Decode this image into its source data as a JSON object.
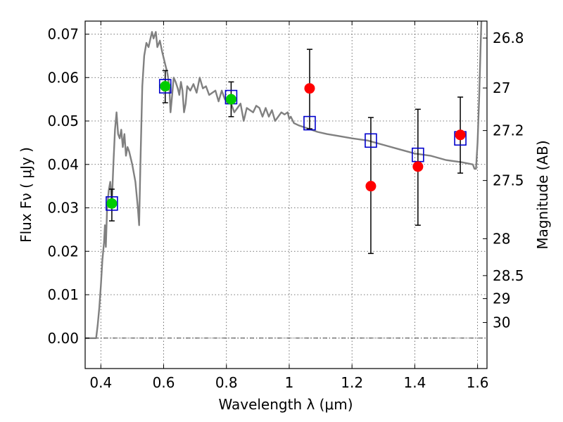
{
  "chart_data": {
    "type": "scatter",
    "title": "",
    "xlabel": "Wavelength  λ (μm)",
    "ylabel": "Flux  Fν  ( μJy )",
    "y2label": "Magnitude (AB)",
    "xlim": [
      0.35,
      1.63
    ],
    "ylim": [
      -0.007,
      0.073
    ],
    "grid": true,
    "x_ticks": [
      0.4,
      0.6,
      0.8,
      1.0,
      1.2,
      1.4,
      1.6
    ],
    "x_tick_labels": [
      "0.4",
      "0.6",
      "0.8",
      "1",
      "1.2",
      "1.4",
      "1.6"
    ],
    "y_ticks": [
      0.0,
      0.01,
      0.02,
      0.03,
      0.04,
      0.05,
      0.06,
      0.07
    ],
    "y_tick_labels": [
      "0.00",
      "0.01",
      "0.02",
      "0.03",
      "0.04",
      "0.05",
      "0.06",
      "0.07"
    ],
    "y2_ticks": [
      {
        "flux": 0.0691,
        "label": "26.8"
      },
      {
        "flux": 0.0576,
        "label": "27"
      },
      {
        "flux": 0.0478,
        "label": "27.2"
      },
      {
        "flux": 0.0363,
        "label": "27.5"
      },
      {
        "flux": 0.0229,
        "label": "28"
      },
      {
        "flux": 0.0144,
        "label": "28.5"
      },
      {
        "flux": 0.0091,
        "label": "29"
      },
      {
        "flux": 0.0036,
        "label": "30"
      }
    ],
    "series": [
      {
        "type": "line",
        "color": "#808080",
        "points": [
          [
            0.35,
            0.0
          ],
          [
            0.385,
            0.0
          ],
          [
            0.39,
            0.003
          ],
          [
            0.395,
            0.007
          ],
          [
            0.4,
            0.012
          ],
          [
            0.405,
            0.018
          ],
          [
            0.41,
            0.022
          ],
          [
            0.413,
            0.026
          ],
          [
            0.416,
            0.021
          ],
          [
            0.42,
            0.03
          ],
          [
            0.425,
            0.034
          ],
          [
            0.43,
            0.036
          ],
          [
            0.435,
            0.031
          ],
          [
            0.44,
            0.04
          ],
          [
            0.445,
            0.048
          ],
          [
            0.45,
            0.052
          ],
          [
            0.455,
            0.047
          ],
          [
            0.46,
            0.046
          ],
          [
            0.465,
            0.048
          ],
          [
            0.47,
            0.044
          ],
          [
            0.475,
            0.047
          ],
          [
            0.48,
            0.042
          ],
          [
            0.485,
            0.044
          ],
          [
            0.49,
            0.043
          ],
          [
            0.5,
            0.04
          ],
          [
            0.51,
            0.036
          ],
          [
            0.518,
            0.03
          ],
          [
            0.522,
            0.026
          ],
          [
            0.526,
            0.04
          ],
          [
            0.532,
            0.058
          ],
          [
            0.538,
            0.065
          ],
          [
            0.545,
            0.068
          ],
          [
            0.552,
            0.067
          ],
          [
            0.558,
            0.069
          ],
          [
            0.563,
            0.0705
          ],
          [
            0.568,
            0.069
          ],
          [
            0.575,
            0.0705
          ],
          [
            0.58,
            0.067
          ],
          [
            0.588,
            0.0685
          ],
          [
            0.595,
            0.066
          ],
          [
            0.605,
            0.063
          ],
          [
            0.612,
            0.061
          ],
          [
            0.618,
            0.058
          ],
          [
            0.622,
            0.052
          ],
          [
            0.626,
            0.055
          ],
          [
            0.632,
            0.06
          ],
          [
            0.638,
            0.059
          ],
          [
            0.645,
            0.0575
          ],
          [
            0.65,
            0.056
          ],
          [
            0.655,
            0.059
          ],
          [
            0.66,
            0.057
          ],
          [
            0.665,
            0.052
          ],
          [
            0.67,
            0.054
          ],
          [
            0.675,
            0.058
          ],
          [
            0.685,
            0.057
          ],
          [
            0.695,
            0.0585
          ],
          [
            0.705,
            0.0565
          ],
          [
            0.715,
            0.06
          ],
          [
            0.725,
            0.0575
          ],
          [
            0.735,
            0.058
          ],
          [
            0.745,
            0.056
          ],
          [
            0.755,
            0.0565
          ],
          [
            0.765,
            0.057
          ],
          [
            0.775,
            0.0545
          ],
          [
            0.785,
            0.057
          ],
          [
            0.795,
            0.055
          ],
          [
            0.805,
            0.054
          ],
          [
            0.815,
            0.054
          ],
          [
            0.825,
            0.052
          ],
          [
            0.835,
            0.053
          ],
          [
            0.845,
            0.054
          ],
          [
            0.855,
            0.05
          ],
          [
            0.865,
            0.053
          ],
          [
            0.875,
            0.0525
          ],
          [
            0.885,
            0.052
          ],
          [
            0.895,
            0.0535
          ],
          [
            0.905,
            0.053
          ],
          [
            0.915,
            0.051
          ],
          [
            0.925,
            0.053
          ],
          [
            0.935,
            0.051
          ],
          [
            0.945,
            0.0525
          ],
          [
            0.955,
            0.05
          ],
          [
            0.965,
            0.051
          ],
          [
            0.975,
            0.052
          ],
          [
            0.985,
            0.0515
          ],
          [
            0.995,
            0.052
          ],
          [
            1.0,
            0.0505
          ],
          [
            1.005,
            0.051
          ],
          [
            1.015,
            0.0495
          ],
          [
            1.03,
            0.049
          ],
          [
            1.05,
            0.0485
          ],
          [
            1.07,
            0.048
          ],
          [
            1.09,
            0.0475
          ],
          [
            1.12,
            0.047
          ],
          [
            1.16,
            0.0465
          ],
          [
            1.2,
            0.046
          ],
          [
            1.25,
            0.0455
          ],
          [
            1.3,
            0.0445
          ],
          [
            1.35,
            0.0435
          ],
          [
            1.4,
            0.0425
          ],
          [
            1.45,
            0.042
          ],
          [
            1.5,
            0.041
          ],
          [
            1.55,
            0.0405
          ],
          [
            1.585,
            0.04
          ],
          [
            1.59,
            0.039
          ],
          [
            1.595,
            0.039
          ],
          [
            1.6,
            0.045
          ],
          [
            1.605,
            0.055
          ],
          [
            1.61,
            0.068
          ],
          [
            1.613,
            0.075
          ]
        ]
      },
      {
        "type": "scatter",
        "marker": "open-square",
        "color": "#0000cc",
        "x": [
          0.435,
          0.605,
          0.815,
          1.065,
          1.26,
          1.41,
          1.545
        ],
        "y": [
          0.031,
          0.058,
          0.0555,
          0.0495,
          0.0455,
          0.0422,
          0.046
        ]
      },
      {
        "type": "scatter",
        "marker": "filled-circle",
        "color": "#00cc00",
        "x": [
          0.435,
          0.605,
          0.815
        ],
        "y": [
          0.031,
          0.058,
          0.055
        ],
        "err_low": [
          0.027,
          0.0542,
          0.051
        ],
        "err_high": [
          0.0343,
          0.0616,
          0.059
        ]
      },
      {
        "type": "scatter",
        "marker": "filled-circle",
        "color": "#ff0000",
        "x": [
          1.065,
          1.26,
          1.41,
          1.545
        ],
        "y": [
          0.0575,
          0.035,
          0.0395,
          0.0468
        ],
        "err_low": [
          0.0482,
          0.0195,
          0.026,
          0.038
        ],
        "err_high": [
          0.0665,
          0.0508,
          0.0527,
          0.0555
        ]
      }
    ]
  }
}
